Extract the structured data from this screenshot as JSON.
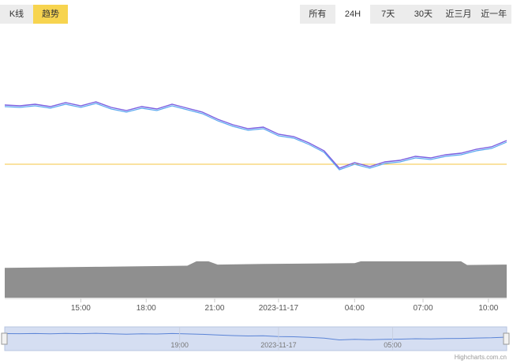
{
  "view_tabs": [
    {
      "label": "K线",
      "active": false
    },
    {
      "label": "趋势",
      "active": true
    }
  ],
  "ranges": [
    {
      "label": "所有",
      "active": false
    },
    {
      "label": "24H",
      "active": true
    },
    {
      "label": "7天",
      "active": false
    },
    {
      "label": "30天",
      "active": false
    },
    {
      "label": "近三月",
      "active": false
    },
    {
      "label": "近一年",
      "active": false
    }
  ],
  "credit": "Highcharts.com.cn",
  "colors": {
    "price_line": "#7b5fe0",
    "price_shadow": "#5aa8f0",
    "reference_line": "#f5c542",
    "volume": "#8f8f8f",
    "navigator_fill": "#d5def2",
    "navigator_line": "#5b84d6",
    "active_tab": "#f7d44f"
  },
  "chart_data": {
    "type": "line",
    "x_ticks": [
      "15:00",
      "18:00",
      "21:00",
      "2023-11-17",
      "04:00",
      "07:00",
      "10:00"
    ],
    "navigator_ticks": [
      "19:00",
      "2023-11-17",
      "05:00"
    ],
    "price_series": [
      {
        "t": 0,
        "y": 0.75
      },
      {
        "t": 1,
        "y": 0.74
      },
      {
        "t": 2,
        "y": 0.76
      },
      {
        "t": 3,
        "y": 0.73
      },
      {
        "t": 4,
        "y": 0.78
      },
      {
        "t": 5,
        "y": 0.74
      },
      {
        "t": 6,
        "y": 0.79
      },
      {
        "t": 7,
        "y": 0.72
      },
      {
        "t": 8,
        "y": 0.68
      },
      {
        "t": 9,
        "y": 0.73
      },
      {
        "t": 10,
        "y": 0.7
      },
      {
        "t": 11,
        "y": 0.76
      },
      {
        "t": 12,
        "y": 0.71
      },
      {
        "t": 13,
        "y": 0.66
      },
      {
        "t": 14,
        "y": 0.57
      },
      {
        "t": 15,
        "y": 0.5
      },
      {
        "t": 16,
        "y": 0.45
      },
      {
        "t": 17,
        "y": 0.47
      },
      {
        "t": 18,
        "y": 0.38
      },
      {
        "t": 19,
        "y": 0.35
      },
      {
        "t": 20,
        "y": 0.27
      },
      {
        "t": 21,
        "y": 0.17
      },
      {
        "t": 22,
        "y": -0.05
      },
      {
        "t": 23,
        "y": 0.02
      },
      {
        "t": 24,
        "y": -0.03
      },
      {
        "t": 25,
        "y": 0.03
      },
      {
        "t": 26,
        "y": 0.05
      },
      {
        "t": 27,
        "y": 0.1
      },
      {
        "t": 28,
        "y": 0.08
      },
      {
        "t": 29,
        "y": 0.12
      },
      {
        "t": 30,
        "y": 0.14
      },
      {
        "t": 31,
        "y": 0.19
      },
      {
        "t": 32,
        "y": 0.22
      },
      {
        "t": 33,
        "y": 0.3
      }
    ],
    "reference_level": 0.0,
    "volume_series": [
      {
        "t": 0,
        "v": 0.82
      },
      {
        "t": 6,
        "v": 0.85
      },
      {
        "t": 12,
        "v": 0.88
      },
      {
        "t": 12.6,
        "v": 1.0
      },
      {
        "t": 13.4,
        "v": 1.0
      },
      {
        "t": 14,
        "v": 0.91
      },
      {
        "t": 17,
        "v": 0.93
      },
      {
        "t": 23,
        "v": 0.95
      },
      {
        "t": 23.4,
        "v": 1.0
      },
      {
        "t": 30,
        "v": 1.0
      },
      {
        "t": 30.4,
        "v": 0.9
      },
      {
        "t": 33,
        "v": 0.91
      }
    ],
    "grid": false
  }
}
